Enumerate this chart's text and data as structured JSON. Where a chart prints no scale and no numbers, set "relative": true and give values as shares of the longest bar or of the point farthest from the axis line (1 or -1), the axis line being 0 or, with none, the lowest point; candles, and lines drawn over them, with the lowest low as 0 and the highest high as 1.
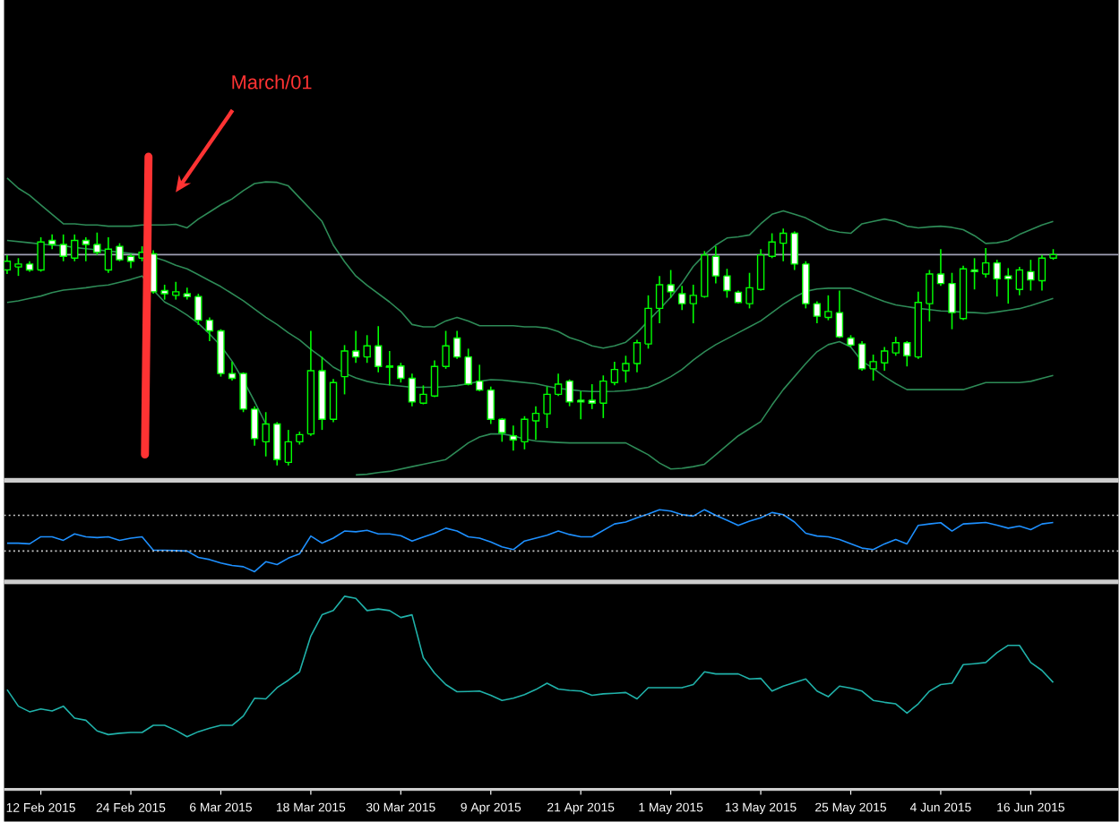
{
  "chart_data": [
    {
      "type": "candlestick",
      "relative": true,
      "color": "#00ff00",
      "tick_labels": false,
      "categories": [
        null,
        null,
        null,
        null,
        null,
        null,
        null,
        null,
        null,
        null,
        null,
        null,
        null,
        null,
        null,
        null,
        null,
        null,
        null,
        null,
        null,
        null,
        null,
        null,
        null,
        null,
        null,
        null,
        null,
        null,
        null,
        null,
        null,
        null,
        null,
        null,
        null,
        null,
        null,
        null,
        null,
        null,
        null,
        null,
        null,
        null,
        null,
        null,
        null,
        null,
        null,
        null,
        null,
        null,
        null,
        null,
        null,
        null,
        null,
        null,
        null,
        null,
        null,
        null,
        null,
        null,
        null,
        null,
        null,
        null,
        null,
        null,
        null,
        null,
        null,
        null,
        null,
        null,
        null,
        null,
        null,
        null,
        null,
        null,
        null,
        null,
        null,
        null,
        null,
        null,
        null,
        null,
        null,
        null
      ],
      "ohlc": [
        [
          0.825,
          0.888,
          0.808,
          0.862
        ],
        [
          0.838,
          0.875,
          0.8,
          0.85
        ],
        [
          0.85,
          0.862,
          0.818,
          0.825
        ],
        [
          0.825,
          0.963,
          0.818,
          0.943
        ],
        [
          0.95,
          0.975,
          0.913,
          0.933
        ],
        [
          0.933,
          0.975,
          0.862,
          0.883
        ],
        [
          0.875,
          0.975,
          0.862,
          0.95
        ],
        [
          0.95,
          0.963,
          0.862,
          0.933
        ],
        [
          0.933,
          0.983,
          0.888,
          0.9
        ],
        [
          0.825,
          0.963,
          0.813,
          0.913
        ],
        [
          0.925,
          0.938,
          0.862,
          0.868
        ],
        [
          0.883,
          0.893,
          0.833,
          0.862
        ],
        [
          0.875,
          0.925,
          0.862,
          0.9
        ],
        [
          0.893,
          0.908,
          0.725,
          0.733
        ],
        [
          0.738,
          0.763,
          0.7,
          0.725
        ],
        [
          0.718,
          0.775,
          0.7,
          0.733
        ],
        [
          0.725,
          0.75,
          0.7,
          0.713
        ],
        [
          0.713,
          0.725,
          0.593,
          0.613
        ],
        [
          0.613,
          0.625,
          0.525,
          0.568
        ],
        [
          0.568,
          0.575,
          0.375,
          0.388
        ],
        [
          0.388,
          0.438,
          0.358,
          0.368
        ],
        [
          0.388,
          0.393,
          0.225,
          0.238
        ],
        [
          0.238,
          0.25,
          0.083,
          0.113
        ],
        [
          0.1,
          0.225,
          0.038,
          0.175
        ],
        [
          0.175,
          0.183,
          0.0,
          0.025
        ],
        [
          0.013,
          0.15,
          0.0,
          0.1
        ],
        [
          0.1,
          0.143,
          0.088,
          0.13
        ],
        [
          0.133,
          0.568,
          0.125,
          0.4
        ],
        [
          0.4,
          0.458,
          0.15,
          0.195
        ],
        [
          0.195,
          0.365,
          0.183,
          0.35
        ],
        [
          0.375,
          0.508,
          0.3,
          0.483
        ],
        [
          0.483,
          0.568,
          0.433,
          0.458
        ],
        [
          0.458,
          0.55,
          0.433,
          0.505
        ],
        [
          0.505,
          0.588,
          0.393,
          0.418
        ],
        [
          0.42,
          0.483,
          0.338,
          0.415
        ],
        [
          0.42,
          0.433,
          0.35,
          0.368
        ],
        [
          0.368,
          0.388,
          0.25,
          0.268
        ],
        [
          0.263,
          0.338,
          0.258,
          0.3
        ],
        [
          0.293,
          0.443,
          0.288,
          0.418
        ],
        [
          0.418,
          0.568,
          0.408,
          0.505
        ],
        [
          0.538,
          0.568,
          0.45,
          0.458
        ],
        [
          0.458,
          0.493,
          0.338,
          0.343
        ],
        [
          0.356,
          0.425,
          0.313,
          0.318
        ],
        [
          0.318,
          0.333,
          0.175,
          0.195
        ],
        [
          0.195,
          0.2,
          0.1,
          0.138
        ],
        [
          0.125,
          0.168,
          0.063,
          0.108
        ],
        [
          0.1,
          0.208,
          0.068,
          0.195
        ],
        [
          0.188,
          0.25,
          0.108,
          0.22
        ],
        [
          0.218,
          0.333,
          0.158,
          0.3
        ],
        [
          0.3,
          0.388,
          0.293,
          0.343
        ],
        [
          0.356,
          0.363,
          0.25,
          0.268
        ],
        [
          0.275,
          0.313,
          0.195,
          0.268
        ],
        [
          0.275,
          0.343,
          0.238,
          0.263
        ],
        [
          0.263,
          0.38,
          0.2,
          0.356
        ],
        [
          0.35,
          0.438,
          0.338,
          0.405
        ],
        [
          0.4,
          0.463,
          0.35,
          0.43
        ],
        [
          0.43,
          0.53,
          0.393,
          0.518
        ],
        [
          0.513,
          0.718,
          0.493,
          0.663
        ],
        [
          0.663,
          0.8,
          0.6,
          0.763
        ],
        [
          0.763,
          0.825,
          0.708,
          0.733
        ],
        [
          0.725,
          0.758,
          0.656,
          0.683
        ],
        [
          0.683,
          0.763,
          0.6,
          0.718
        ],
        [
          0.713,
          0.905,
          0.708,
          0.888
        ],
        [
          0.883,
          0.925,
          0.768,
          0.8
        ],
        [
          0.8,
          0.83,
          0.708,
          0.738
        ],
        [
          0.731,
          0.738,
          0.683,
          0.688
        ],
        [
          0.683,
          0.813,
          0.663,
          0.75
        ],
        [
          0.743,
          0.913,
          0.738,
          0.888
        ],
        [
          0.883,
          0.98,
          0.875,
          0.943
        ],
        [
          0.938,
          1.0,
          0.862,
          0.98
        ],
        [
          0.98,
          0.988,
          0.825,
          0.85
        ],
        [
          0.85,
          0.862,
          0.663,
          0.683
        ],
        [
          0.683,
          0.693,
          0.6,
          0.63
        ],
        [
          0.625,
          0.718,
          0.613,
          0.65
        ],
        [
          0.645,
          0.738,
          0.538,
          0.543
        ],
        [
          0.538,
          0.55,
          0.5,
          0.508
        ],
        [
          0.513,
          0.525,
          0.4,
          0.408
        ],
        [
          0.408,
          0.468,
          0.358,
          0.438
        ],
        [
          0.433,
          0.5,
          0.4,
          0.483
        ],
        [
          0.475,
          0.543,
          0.463,
          0.518
        ],
        [
          0.518,
          0.525,
          0.418,
          0.463
        ],
        [
          0.458,
          0.733,
          0.45,
          0.688
        ],
        [
          0.683,
          0.825,
          0.608,
          0.808
        ],
        [
          0.808,
          0.913,
          0.758,
          0.768
        ],
        [
          0.768,
          0.813,
          0.575,
          0.645
        ],
        [
          0.62,
          0.843,
          0.613,
          0.83
        ],
        [
          0.825,
          0.875,
          0.743,
          0.818
        ],
        [
          0.808,
          0.918,
          0.793,
          0.855
        ],
        [
          0.855,
          0.868,
          0.713,
          0.788
        ],
        [
          0.8,
          0.833,
          0.683,
          0.788
        ],
        [
          0.743,
          0.838,
          0.718,
          0.825
        ],
        [
          0.818,
          0.868,
          0.738,
          0.783
        ],
        [
          0.78,
          0.888,
          0.738,
          0.875
        ],
        [
          0.875,
          0.913,
          0.868,
          0.89
        ]
      ],
      "colors": [
        "#000000",
        "#000000",
        "#ffffff",
        "#000000",
        "#ffffff",
        "#ffffff",
        "#000000",
        "#ffffff",
        "#ffffff",
        "#000000",
        "#ffffff",
        "#ffffff",
        "#000000",
        "#ffffff",
        "#ffffff",
        "#000000",
        "#ffffff",
        "#ffffff",
        "#ffffff",
        "#ffffff",
        "#ffffff",
        "#ffffff",
        "#ffffff",
        "#000000",
        "#ffffff",
        "#000000",
        "#000000",
        "#000000",
        "#ffffff",
        "#000000",
        "#000000",
        "#ffffff",
        "#000000",
        "#ffffff",
        "#ffffff",
        "#ffffff",
        "#ffffff",
        "#000000",
        "#000000",
        "#000000",
        "#ffffff",
        "#ffffff",
        "#ffffff",
        "#ffffff",
        "#ffffff",
        "#ffffff",
        "#000000",
        "#000000",
        "#000000",
        "#000000",
        "#ffffff",
        "#ffffff",
        "#ffffff",
        "#000000",
        "#000000",
        "#000000",
        "#000000",
        "#000000",
        "#000000",
        "#ffffff",
        "#ffffff",
        "#000000",
        "#000000",
        "#ffffff",
        "#ffffff",
        "#ffffff",
        "#000000",
        "#000000",
        "#000000",
        "#000000",
        "#ffffff",
        "#ffffff",
        "#ffffff",
        "#000000",
        "#ffffff",
        "#ffffff",
        "#ffffff",
        "#000000",
        "#000000",
        "#000000",
        "#ffffff",
        "#000000",
        "#000000",
        "#ffffff",
        "#ffffff",
        "#000000",
        "#ffffff",
        "#000000",
        "#ffffff",
        "#ffffff",
        "#000000",
        "#ffffff",
        "#000000",
        "#000000"
      ],
      "series": [
        {
          "type": "line",
          "color": "#2e8b57",
          "values": [
            1.213,
            1.17,
            1.14,
            1.1,
            1.06,
            1.02,
            1.02,
            1.015,
            1.015,
            1.01,
            1.01,
            1.01,
            1.015,
            1.015,
            1.015,
            1.018,
            1.003,
            1.04,
            1.07,
            1.1,
            1.125,
            1.16,
            1.19,
            1.197,
            1.195,
            1.18,
            1.13,
            1.08,
            1.03,
            0.93,
            0.86,
            0.8,
            0.76,
            0.725,
            0.69,
            0.65,
            0.595,
            0.585,
            0.585,
            0.61,
            0.625,
            0.61,
            0.59,
            0.59,
            0.59,
            0.59,
            0.585,
            0.585,
            0.58,
            0.565,
            0.54,
            0.525,
            0.505,
            0.495,
            0.505,
            0.52,
            0.56,
            0.61,
            0.66,
            0.71,
            0.77,
            0.84,
            0.89,
            0.93,
            0.96,
            0.965,
            0.973,
            1.02,
            1.06,
            1.075,
            1.06,
            1.045,
            1.02,
            0.995,
            0.985,
            0.98,
            1.02,
            1.03,
            1.04,
            1.03,
            1.01,
            1.003,
            1.007,
            1.01,
            1.005,
            0.995,
            0.97,
            0.937,
            0.94,
            0.95,
            0.975,
            0.995,
            1.015,
            1.03
          ]
        },
        {
          "type": "line",
          "color": "#2e8b57",
          "values": [
            0.95,
            0.945,
            0.94,
            0.935,
            0.93,
            0.927,
            0.92,
            0.915,
            0.91,
            0.905,
            0.9,
            0.895,
            0.89,
            0.88,
            0.865,
            0.845,
            0.83,
            0.805,
            0.78,
            0.755,
            0.725,
            0.695,
            0.66,
            0.625,
            0.595,
            0.56,
            0.53,
            0.49,
            0.455,
            0.415,
            0.39,
            0.37,
            0.355,
            0.345,
            0.34,
            0.335,
            0.33,
            0.33,
            0.33,
            0.333,
            0.337,
            0.345,
            0.355,
            0.362,
            0.36,
            0.355,
            0.35,
            0.345,
            0.335,
            0.325,
            0.32,
            0.315,
            0.312,
            0.312,
            0.313,
            0.316,
            0.322,
            0.33,
            0.35,
            0.375,
            0.405,
            0.445,
            0.48,
            0.51,
            0.535,
            0.56,
            0.585,
            0.61,
            0.645,
            0.68,
            0.71,
            0.735,
            0.745,
            0.748,
            0.748,
            0.748,
            0.73,
            0.71,
            0.692,
            0.678,
            0.67,
            0.663,
            0.658,
            0.652,
            0.65,
            0.647,
            0.645,
            0.642,
            0.648,
            0.655,
            0.662,
            0.675,
            0.69,
            0.705
          ]
        },
        {
          "type": "line",
          "color": "#2e8b57",
          "values": [
            0.688,
            0.695,
            0.705,
            0.715,
            0.73,
            0.74,
            0.745,
            0.75,
            0.757,
            0.762,
            0.773,
            0.785,
            0.8,
            0.74,
            0.69,
            0.665,
            0.635,
            0.6,
            0.555,
            0.505,
            0.44,
            0.36,
            0.27,
            0.175,
            null,
            null,
            null,
            null,
            null,
            null,
            null,
            -0.04,
            -0.037,
            -0.03,
            -0.025,
            -0.015,
            -0.005,
            0.005,
            0.015,
            0.025,
            0.06,
            0.095,
            0.12,
            0.133,
            0.133,
            0.125,
            0.112,
            0.103,
            0.1,
            0.097,
            0.095,
            0.095,
            0.095,
            0.095,
            0.095,
            0.095,
            0.07,
            0.045,
            0.01,
            -0.015,
            -0.012,
            -0.005,
            0.005,
            0.045,
            0.085,
            0.125,
            0.155,
            0.185,
            0.255,
            0.32,
            0.375,
            0.43,
            0.48,
            0.51,
            0.523,
            0.5,
            0.44,
            0.41,
            0.375,
            0.345,
            0.32,
            0.32,
            0.32,
            0.32,
            0.32,
            0.32,
            0.335,
            0.35,
            0.35,
            0.35,
            0.35,
            0.355,
            0.368,
            0.38
          ]
        }
      ],
      "ref_lines": [
        {
          "axis": "y",
          "value": 0.89,
          "color": "#a0a0b4"
        }
      ],
      "annotations": [
        "March/01"
      ]
    },
    {
      "type": "line",
      "relative": true,
      "tick_labels": false,
      "categories": [
        null,
        null,
        null,
        null,
        null,
        null,
        null,
        null,
        null,
        null,
        null,
        null,
        null,
        null,
        null,
        null,
        null,
        null,
        null,
        null,
        null,
        null,
        null,
        null,
        null,
        null,
        null,
        null,
        null,
        null,
        null,
        null,
        null,
        null,
        null,
        null,
        null,
        null,
        null,
        null,
        null,
        null,
        null,
        null,
        null,
        null,
        null,
        null,
        null,
        null,
        null,
        null,
        null,
        null,
        null,
        null,
        null,
        null,
        null,
        null,
        null,
        null,
        null,
        null,
        null,
        null,
        null,
        null,
        null,
        null,
        null,
        null,
        null,
        null,
        null,
        null,
        null,
        null,
        null,
        null,
        null,
        null,
        null,
        null,
        null,
        null,
        null,
        null,
        null,
        null,
        null,
        null,
        null,
        null
      ],
      "series": [
        {
          "color": "#1e90ff",
          "values": [
            0.53,
            0.53,
            0.52,
            0.62,
            0.62,
            0.57,
            0.66,
            0.62,
            0.608,
            0.62,
            0.57,
            0.6,
            0.62,
            0.43,
            0.43,
            0.426,
            0.42,
            0.33,
            0.3,
            0.252,
            0.217,
            0.2,
            0.13,
            0.27,
            0.23,
            0.32,
            0.38,
            0.63,
            0.53,
            0.6,
            0.7,
            0.69,
            0.71,
            0.66,
            0.66,
            0.635,
            0.56,
            0.617,
            0.67,
            0.74,
            0.7,
            0.62,
            0.6,
            0.548,
            0.478,
            0.44,
            0.56,
            0.6,
            0.64,
            0.7,
            0.652,
            0.62,
            0.62,
            0.71,
            0.8,
            0.826,
            0.887,
            0.94,
            1.0,
            0.98,
            0.93,
            0.91,
            1.0,
            0.92,
            0.852,
            0.78,
            0.84,
            0.887,
            0.96,
            0.93,
            0.826,
            0.669,
            0.63,
            0.62,
            0.582,
            0.522,
            0.461,
            0.44,
            0.52,
            0.58,
            0.52,
            0.78,
            0.8,
            0.817,
            0.7,
            0.8,
            0.809,
            0.82,
            0.783,
            0.74,
            0.77,
            0.72,
            0.8,
            0.82
          ]
        }
      ],
      "ref_lines": [
        {
          "axis": "y",
          "value": 0.92,
          "color": "#c8c8c8",
          "line_style": "dotted"
        },
        {
          "axis": "y",
          "value": 0.42,
          "color": "#c8c8c8",
          "line_style": "dotted"
        }
      ]
    },
    {
      "type": "line",
      "relative": true,
      "tick_labels": "x",
      "categories": [
        null,
        null,
        null,
        "12 Feb 2015",
        null,
        null,
        null,
        null,
        null,
        null,
        null,
        "24 Feb 2015",
        null,
        null,
        null,
        null,
        null,
        null,
        null,
        "6 Mar 2015",
        null,
        null,
        null,
        null,
        null,
        null,
        null,
        "18 Mar 2015",
        null,
        null,
        null,
        null,
        null,
        null,
        null,
        "30 Mar 2015",
        null,
        null,
        null,
        null,
        null,
        null,
        null,
        "9 Apr 2015",
        null,
        null,
        null,
        null,
        null,
        null,
        null,
        "21 Apr 2015",
        null,
        null,
        null,
        null,
        null,
        null,
        null,
        "1 May 2015",
        null,
        null,
        null,
        null,
        null,
        null,
        null,
        "13 May 2015",
        null,
        null,
        null,
        null,
        null,
        null,
        null,
        "25 May 2015",
        null,
        null,
        null,
        null,
        null,
        null,
        null,
        "4 Jun 2015",
        null,
        null,
        null,
        null,
        null,
        null,
        null,
        "16 Jun 2015",
        null,
        null
      ],
      "series": [
        {
          "color": "#20b2aa",
          "values": [
            0.517,
            0.431,
            0.402,
            0.417,
            0.406,
            0.431,
            0.369,
            0.358,
            0.303,
            0.284,
            0.291,
            0.295,
            0.295,
            0.332,
            0.332,
            0.306,
            0.273,
            0.299,
            0.317,
            0.332,
            0.332,
            0.38,
            0.472,
            0.469,
            0.527,
            0.565,
            0.609,
            0.794,
            0.904,
            0.926,
            1.0,
            0.989,
            0.926,
            0.934,
            0.926,
            0.89,
            0.904,
            0.682,
            0.602,
            0.543,
            0.506,
            0.507,
            0.509,
            0.487,
            0.461,
            0.472,
            0.491,
            0.517,
            0.55,
            0.52,
            0.513,
            0.509,
            0.487,
            0.495,
            0.498,
            0.502,
            0.469,
            0.527,
            0.527,
            0.527,
            0.527,
            0.543,
            0.609,
            0.598,
            0.598,
            0.598,
            0.572,
            0.575,
            0.509,
            0.535,
            0.553,
            0.572,
            0.509,
            0.48,
            0.535,
            0.524,
            0.509,
            0.461,
            0.451,
            0.443,
            0.395,
            0.443,
            0.509,
            0.543,
            0.55,
            0.646,
            0.651,
            0.657,
            0.708,
            0.746,
            0.746,
            0.657,
            0.616,
            0.554
          ]
        }
      ]
    }
  ]
}
